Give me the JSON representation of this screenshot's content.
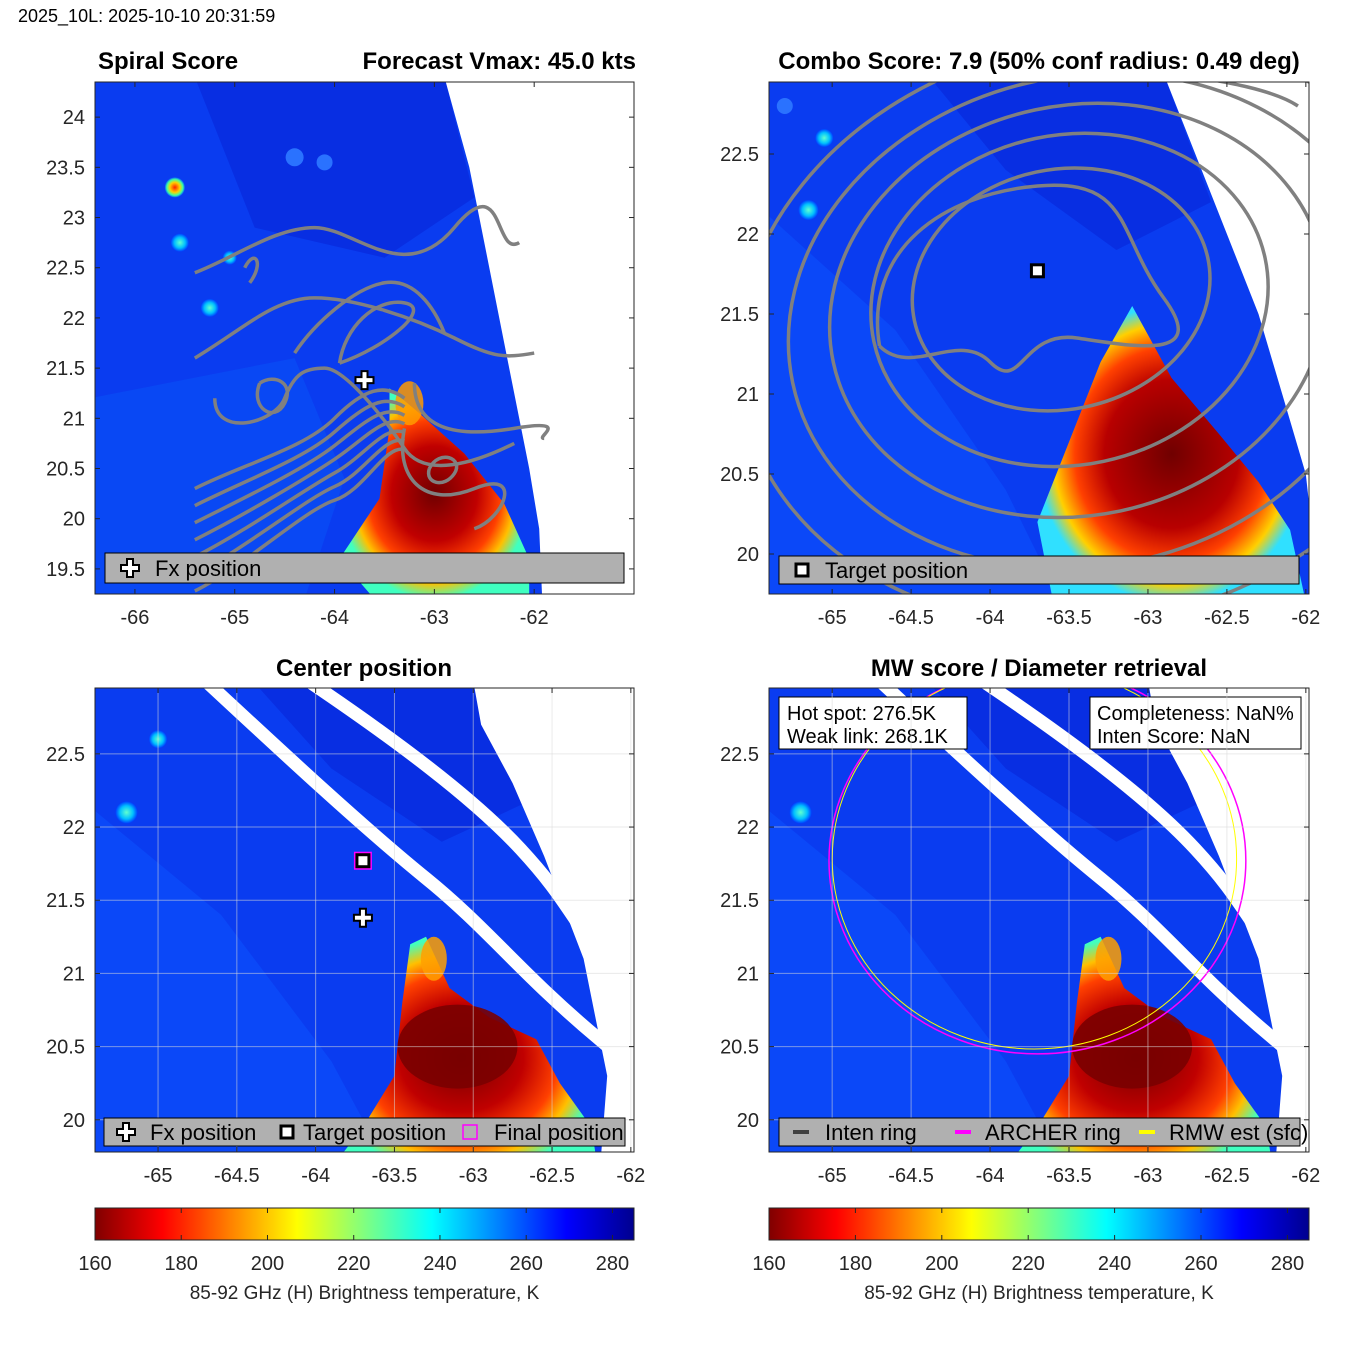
{
  "header": "2025_10L: 2025-10-10 20:31:59",
  "colors": {
    "jet": [
      "#800000",
      "#ff0000",
      "#ff8000",
      "#ffff00",
      "#80ff80",
      "#00ffff",
      "#0080ff",
      "#0000ff",
      "#00008f"
    ],
    "contour": "#808080",
    "archer_ring": "#ff00ff",
    "rmw_ring": "#ffff00",
    "legend_bg": "#b0b0b0"
  },
  "chart_data": [
    {
      "id": "spiral",
      "type": "heatmap",
      "title_left": "Spiral Score",
      "title_right": "Forecast Vmax: 45.0 kts",
      "xlim": [
        -66.4,
        -61.0
      ],
      "ylim": [
        19.25,
        24.35
      ],
      "xticks": [
        -66,
        -65,
        -64,
        -63,
        -62
      ],
      "yticks": [
        19.5,
        20,
        20.5,
        21,
        21.5,
        22,
        22.5,
        23,
        23.5,
        24
      ],
      "xtick_labels": [
        "-66",
        "-65",
        "-64",
        "-63",
        "-62"
      ],
      "ytick_labels": [
        "19.5",
        "20",
        "20.5",
        "21",
        "21.5",
        "22",
        "22.5",
        "23",
        "23.5",
        "24"
      ],
      "fx_position": [
        -63.7,
        21.38
      ],
      "legend": [
        "Fx position"
      ]
    },
    {
      "id": "combo",
      "type": "heatmap",
      "title": "Combo Score: 7.9  (50% conf radius: 0.49 deg)",
      "xlim": [
        -65.4,
        -61.98
      ],
      "ylim": [
        19.75,
        22.95
      ],
      "xticks": [
        -65,
        -64.5,
        -64,
        -63.5,
        -63,
        -62.5,
        -62
      ],
      "yticks": [
        20,
        20.5,
        21,
        21.5,
        22,
        22.5
      ],
      "xtick_labels": [
        "-65",
        "-64.5",
        "-64",
        "-63.5",
        "-63",
        "-62.5",
        "-62"
      ],
      "ytick_labels": [
        "20",
        "20.5",
        "21",
        "21.5",
        "22",
        "22.5"
      ],
      "target_position": [
        -63.7,
        21.77
      ],
      "legend": [
        "Target position"
      ]
    },
    {
      "id": "center",
      "type": "heatmap",
      "title": "Center position",
      "xlim": [
        -65.4,
        -61.98
      ],
      "ylim": [
        19.78,
        22.95
      ],
      "xticks": [
        -65,
        -64.5,
        -64,
        -63.5,
        -63,
        -62.5,
        -62
      ],
      "yticks": [
        20,
        20.5,
        21,
        21.5,
        22,
        22.5
      ],
      "xtick_labels": [
        "-65",
        "-64.5",
        "-64",
        "-63.5",
        "-63",
        "-62.5",
        "-62"
      ],
      "ytick_labels": [
        "20",
        "20.5",
        "21",
        "21.5",
        "22",
        "22.5"
      ],
      "fx_position": [
        -63.7,
        21.38
      ],
      "target_position": [
        -63.7,
        21.77
      ],
      "final_position": [
        -63.7,
        21.77
      ],
      "legend": [
        "Fx position",
        "Target position",
        "Final position"
      ]
    },
    {
      "id": "mw",
      "type": "heatmap",
      "title": "MW score / Diameter retrieval",
      "xlim": [
        -65.4,
        -61.98
      ],
      "ylim": [
        19.78,
        22.95
      ],
      "xticks": [
        -65,
        -64.5,
        -64,
        -63.5,
        -63,
        -62.5,
        -62
      ],
      "yticks": [
        20,
        20.5,
        21,
        21.5,
        22,
        22.5
      ],
      "xtick_labels": [
        "-65",
        "-64.5",
        "-64",
        "-63.5",
        "-63",
        "-62.5",
        "-62"
      ],
      "ytick_labels": [
        "20",
        "20.5",
        "21",
        "21.5",
        "22",
        "22.5"
      ],
      "rings_center": [
        -63.7,
        21.77
      ],
      "archer_ring_radius_deg": 1.32,
      "rmw_ring_radius_deg": 1.3,
      "info_left": [
        "Hot spot: 276.5K",
        "Weak link: 268.1K"
      ],
      "info_right": [
        "Completeness: NaN%",
        "Inten Score: NaN"
      ],
      "legend": [
        "Inten ring",
        "ARCHER ring",
        "RMW est (sfc)"
      ]
    }
  ],
  "colorbar": {
    "min": 160,
    "max": 285,
    "ticks": [
      160,
      180,
      200,
      220,
      240,
      260,
      280
    ],
    "tick_labels": [
      "160",
      "180",
      "200",
      "220",
      "240",
      "260",
      "280"
    ],
    "label": "85-92 GHz (H) Brightness temperature, K"
  }
}
